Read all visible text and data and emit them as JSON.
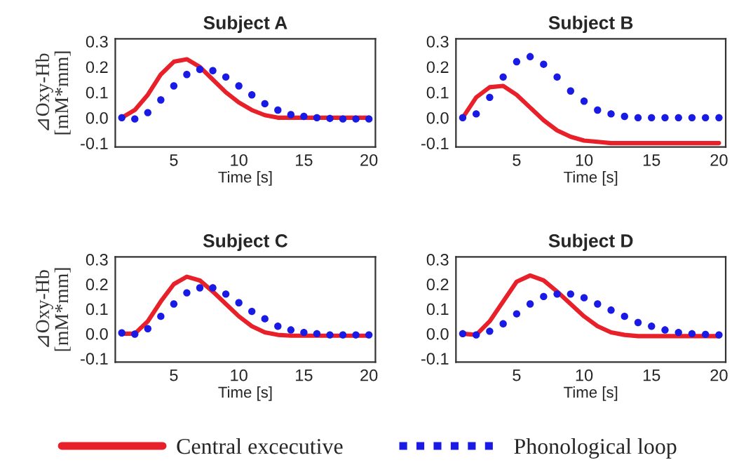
{
  "chart_data": [
    {
      "type": "line",
      "title": "Subject A",
      "xlabel": "Time [s]",
      "ylabel": "⊿Oxy-Hb\n[mM*mm]",
      "x": [
        1,
        2,
        3,
        4,
        5,
        6,
        7,
        8,
        9,
        10,
        11,
        12,
        13,
        14,
        15,
        16,
        17,
        18,
        19,
        20
      ],
      "xlim": [
        0.5,
        20.5
      ],
      "xticks": [
        5,
        10,
        15,
        20
      ],
      "ylim": [
        -0.115,
        0.31
      ],
      "yticks": [
        {
          "value": -0.1,
          "label": "-0.1"
        },
        {
          "value": 0,
          "label": "0.0"
        },
        {
          "value": 0.1,
          "label": "0.1"
        },
        {
          "value": 0.2,
          "label": "0.2"
        },
        {
          "value": 0.3,
          "label": "0.3"
        }
      ],
      "grid": false,
      "legend": "bottom",
      "series": [
        {
          "name": "Central excecutive",
          "color": "#e8202a",
          "values": [
            0,
            0.03,
            0.09,
            0.17,
            0.22,
            0.23,
            0.2,
            0.15,
            0.1,
            0.06,
            0.03,
            0.01,
            0,
            0,
            0,
            0,
            0,
            0,
            0,
            0
          ]
        },
        {
          "name": "Phonological loop",
          "type": "scatter",
          "marker": "circle",
          "color": "#1a1ae6",
          "values": [
            0,
            -0.005,
            0.02,
            0.07,
            0.125,
            0.17,
            0.19,
            0.185,
            0.16,
            0.125,
            0.09,
            0.055,
            0.03,
            0.012,
            0.005,
            0,
            -0.003,
            -0.005,
            -0.005,
            -0.005
          ]
        }
      ]
    },
    {
      "type": "line",
      "title": "Subject B",
      "xlabel": "Time [s]",
      "x": [
        1,
        2,
        3,
        4,
        5,
        6,
        7,
        8,
        9,
        10,
        11,
        12,
        13,
        14,
        15,
        16,
        17,
        18,
        19,
        20
      ],
      "xlim": [
        0.5,
        20.5
      ],
      "xticks": [
        5,
        10,
        15,
        20
      ],
      "ylim": [
        -0.115,
        0.31
      ],
      "yticks": [
        {
          "value": -0.1,
          "label": "-0.1"
        },
        {
          "value": 0,
          "label": "0.0"
        },
        {
          "value": 0.1,
          "label": "0.1"
        },
        {
          "value": 0.2,
          "label": "0.2"
        },
        {
          "value": 0.3,
          "label": "0.3"
        }
      ],
      "grid": false,
      "series": [
        {
          "color": "#e8202a",
          "values": [
            0,
            0.08,
            0.12,
            0.125,
            0.09,
            0.04,
            -0.01,
            -0.05,
            -0.075,
            -0.09,
            -0.095,
            -0.1,
            -0.1,
            -0.1,
            -0.1,
            -0.1,
            -0.1,
            -0.1,
            -0.1,
            -0.1
          ]
        },
        {
          "type": "scatter",
          "marker": "circle",
          "color": "#1a1ae6",
          "values": [
            0,
            0.015,
            0.08,
            0.16,
            0.22,
            0.24,
            0.21,
            0.16,
            0.105,
            0.065,
            0.03,
            0.015,
            0.005,
            0,
            0,
            0,
            0,
            0,
            0,
            0
          ]
        }
      ]
    },
    {
      "type": "line",
      "title": "Subject C",
      "xlabel": "Time [s]",
      "ylabel": "⊿Oxy-Hb\n[mM*mm]",
      "x": [
        1,
        2,
        3,
        4,
        5,
        6,
        7,
        8,
        9,
        10,
        11,
        12,
        13,
        14,
        15,
        16,
        17,
        18,
        19,
        20
      ],
      "xlim": [
        0.5,
        20.5
      ],
      "xticks": [
        5,
        10,
        15,
        20
      ],
      "ylim": [
        -0.115,
        0.31
      ],
      "yticks": [
        {
          "value": -0.1,
          "label": "-0.1"
        },
        {
          "value": 0,
          "label": "0.0"
        },
        {
          "value": 0.1,
          "label": "0.1"
        },
        {
          "value": 0.2,
          "label": "0.2"
        },
        {
          "value": 0.3,
          "label": "0.3"
        }
      ],
      "grid": false,
      "series": [
        {
          "color": "#e8202a",
          "values": [
            0,
            0,
            0.05,
            0.13,
            0.2,
            0.23,
            0.215,
            0.17,
            0.12,
            0.07,
            0.03,
            0.005,
            -0.005,
            -0.008,
            -0.008,
            -0.008,
            -0.008,
            -0.008,
            -0.008,
            -0.008
          ]
        },
        {
          "type": "scatter",
          "marker": "circle",
          "color": "#1a1ae6",
          "values": [
            0.003,
            -0.002,
            0.02,
            0.07,
            0.12,
            0.165,
            0.185,
            0.185,
            0.16,
            0.125,
            0.09,
            0.06,
            0.03,
            0.015,
            0.005,
            0,
            -0.005,
            -0.005,
            -0.005,
            -0.005
          ]
        }
      ]
    },
    {
      "type": "line",
      "title": "Subject D",
      "xlabel": "Time [s]",
      "x": [
        1,
        2,
        3,
        4,
        5,
        6,
        7,
        8,
        9,
        10,
        11,
        12,
        13,
        14,
        15,
        16,
        17,
        18,
        19,
        20
      ],
      "xlim": [
        0.5,
        20.5
      ],
      "xticks": [
        5,
        10,
        15,
        20
      ],
      "ylim": [
        -0.115,
        0.31
      ],
      "yticks": [
        {
          "value": -0.1,
          "label": "-0.1"
        },
        {
          "value": 0,
          "label": "0.0"
        },
        {
          "value": 0.1,
          "label": "0.1"
        },
        {
          "value": 0.2,
          "label": "0.2"
        },
        {
          "value": 0.3,
          "label": "0.3"
        }
      ],
      "grid": false,
      "series": [
        {
          "color": "#e8202a",
          "values": [
            0,
            -0.005,
            0.05,
            0.13,
            0.21,
            0.235,
            0.215,
            0.17,
            0.12,
            0.07,
            0.03,
            0.005,
            -0.005,
            -0.01,
            -0.01,
            -0.01,
            -0.01,
            -0.01,
            -0.01,
            -0.01
          ]
        },
        {
          "type": "scatter",
          "marker": "circle",
          "color": "#1a1ae6",
          "values": [
            0,
            -0.005,
            0.01,
            0.04,
            0.08,
            0.12,
            0.15,
            0.16,
            0.16,
            0.145,
            0.12,
            0.095,
            0.07,
            0.045,
            0.03,
            0.015,
            0.005,
            0,
            -0.003,
            -0.005
          ]
        }
      ]
    }
  ]
}
